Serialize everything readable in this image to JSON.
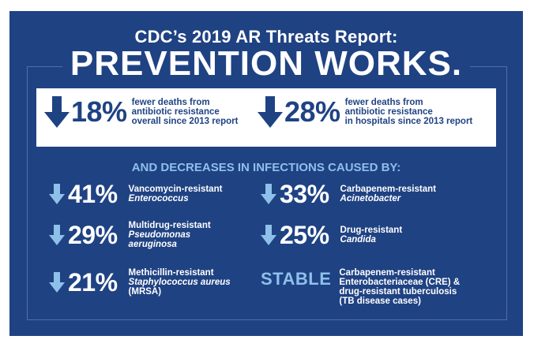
{
  "header": {
    "subtitle": "CDC’s 2019 AR Threats Report:",
    "title": "PREVENTION WORKS."
  },
  "top_stats": [
    {
      "value": "18%",
      "line1": "fewer deaths from",
      "line2": "antibiotic resistance",
      "line3": "overall since 2013 report"
    },
    {
      "value": "28%",
      "line1": "fewer deaths from",
      "line2": "antibiotic resistance",
      "line3": "in hospitals since 2013 report"
    }
  ],
  "section_heading": "AND DECREASES IN INFECTIONS CAUSED BY:",
  "infections": {
    "vre": {
      "value": "41%",
      "line1": "Vancomycin-resistant",
      "line2": "Enterococcus"
    },
    "acin": {
      "value": "33%",
      "line1": "Carbapenem-resistant",
      "line2": "Acinetobacter"
    },
    "pseudo": {
      "value": "29%",
      "line1": "Multidrug-resistant",
      "line2": "Pseudomonas",
      "line3": "aeruginosa"
    },
    "candida": {
      "value": "25%",
      "line1": "Drug-resistant",
      "line2": "Candida"
    },
    "mrsa": {
      "value": "21%",
      "line1": "Methicillin-resistant",
      "line2": "Staphylococcus aureus",
      "line3": "(MRSA)"
    },
    "stable": {
      "label": "STABLE",
      "line1": "Carbapenem-resistant",
      "line2": "Enterobacteriaceae (CRE) &",
      "line3": "drug-resistant tuberculosis",
      "line4": "(TB disease cases)"
    }
  },
  "colors": {
    "background": "#1f4283",
    "arrow_light": "#8ec0ea",
    "arrow_dark": "#1f4283",
    "white_box": "#ffffff"
  },
  "icons": [
    "down-arrow-icon"
  ]
}
